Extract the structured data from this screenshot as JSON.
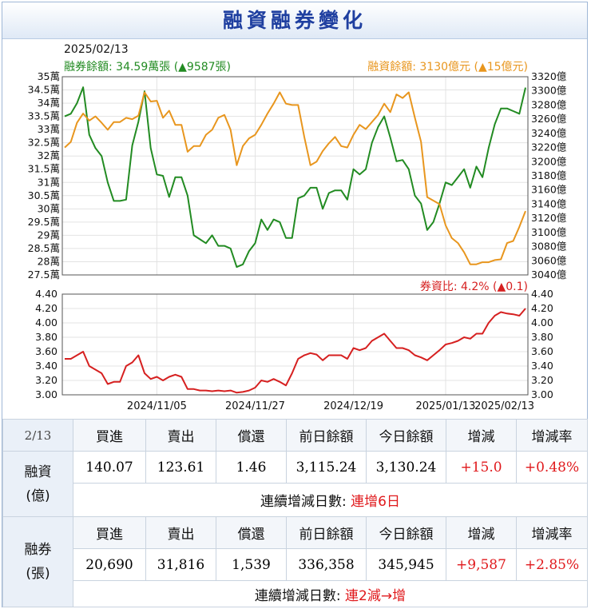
{
  "title": "融資融券變化",
  "info": {
    "date": "2025/02/13",
    "short_label": "融券餘額: 34.59萬張 (▲9587張)",
    "margin_label": "融資餘額: 3130億元 (▲15億元)",
    "ratio_label": "券資比: 4.2% (▲0.1)"
  },
  "colors": {
    "short": "#228b22",
    "margin": "#e8961e",
    "ratio": "#d62020",
    "up": "#e0191c"
  },
  "chart_data": [
    {
      "type": "line",
      "x_ticks": [
        "2024/11/05",
        "2024/11/27",
        "2024/12/19",
        "2025/01/13",
        "2025/02/13"
      ],
      "y_left_ticks": [
        "35萬",
        "34.5萬",
        "34萬",
        "33.5萬",
        "33萬",
        "32.5萬",
        "32萬",
        "31.5萬",
        "31萬",
        "30.5萬",
        "30萬",
        "29.5萬",
        "29萬",
        "28.5萬",
        "28萬",
        "27.5萬"
      ],
      "y_right_ticks": [
        "3320億",
        "3300億",
        "3280億",
        "3260億",
        "3240億",
        "3220億",
        "3200億",
        "3180億",
        "3160億",
        "3140億",
        "3120億",
        "3100億",
        "3080億",
        "3060億",
        "3040億"
      ],
      "y_left_range": [
        27.5,
        35
      ],
      "y_right_range": [
        3040,
        3320
      ],
      "series": [
        {
          "name": "融券餘額",
          "unit": "萬張",
          "axis": "left",
          "values": [
            33.5,
            33.6,
            34.0,
            34.6,
            32.8,
            32.3,
            32.0,
            31.0,
            30.3,
            30.3,
            30.35,
            32.4,
            33.3,
            34.45,
            32.3,
            31.3,
            31.25,
            30.45,
            31.2,
            31.2,
            30.5,
            29.0,
            28.85,
            28.7,
            29.0,
            28.6,
            28.6,
            28.5,
            27.8,
            27.9,
            28.4,
            28.7,
            29.6,
            29.2,
            29.6,
            29.5,
            28.9,
            28.9,
            30.4,
            30.5,
            30.8,
            30.8,
            30.0,
            30.6,
            30.7,
            30.7,
            30.35,
            31.5,
            31.3,
            31.5,
            32.5,
            33.1,
            33.5,
            32.7,
            31.8,
            31.85,
            31.5,
            30.5,
            30.2,
            29.2,
            29.5,
            30.2,
            31.0,
            30.9,
            31.2,
            31.5,
            30.8,
            31.6,
            31.2,
            32.3,
            33.2,
            33.8,
            33.8,
            33.7,
            33.6,
            34.59
          ]
        },
        {
          "name": "融資餘額",
          "unit": "億",
          "axis": "right",
          "values": [
            3220,
            3228,
            3255,
            3268,
            3258,
            3264,
            3255,
            3245,
            3256,
            3256,
            3262,
            3260,
            3265,
            3298,
            3285,
            3286,
            3262,
            3272,
            3252,
            3252,
            3214,
            3222,
            3222,
            3238,
            3245,
            3262,
            3266,
            3245,
            3195,
            3222,
            3233,
            3238,
            3252,
            3268,
            3282,
            3298,
            3282,
            3280,
            3280,
            3235,
            3195,
            3200,
            3215,
            3226,
            3235,
            3222,
            3220,
            3238,
            3252,
            3246,
            3256,
            3266,
            3282,
            3270,
            3295,
            3290,
            3298,
            3262,
            3228,
            3150,
            3145,
            3140,
            3110,
            3092,
            3085,
            3072,
            3055,
            3055,
            3058,
            3058,
            3061,
            3062,
            3085,
            3088,
            3108,
            3130.24
          ]
        },
        {
          "name": "券資比",
          "unit": "%",
          "axis": "ratio",
          "values": [
            3.5,
            3.5,
            3.55,
            3.6,
            3.4,
            3.35,
            3.3,
            3.15,
            3.18,
            3.18,
            3.4,
            3.45,
            3.55,
            3.3,
            3.22,
            3.25,
            3.2,
            3.25,
            3.28,
            3.25,
            3.08,
            3.08,
            3.06,
            3.06,
            3.05,
            3.06,
            3.05,
            3.06,
            3.03,
            3.04,
            3.06,
            3.1,
            3.2,
            3.18,
            3.22,
            3.18,
            3.13,
            3.3,
            3.5,
            3.55,
            3.58,
            3.56,
            3.48,
            3.55,
            3.55,
            3.55,
            3.5,
            3.65,
            3.62,
            3.65,
            3.75,
            3.8,
            3.85,
            3.75,
            3.65,
            3.65,
            3.62,
            3.55,
            3.52,
            3.48,
            3.55,
            3.62,
            3.7,
            3.72,
            3.75,
            3.8,
            3.78,
            3.85,
            3.85,
            4.0,
            4.1,
            4.15,
            4.13,
            4.12,
            4.1,
            4.2
          ]
        }
      ],
      "ratio_ticks": [
        "4.40",
        "4.20",
        "4.00",
        "3.80",
        "3.60",
        "3.40",
        "3.20",
        "3.00"
      ],
      "ratio_range": [
        3.0,
        4.4
      ],
      "grid": true
    }
  ],
  "table": {
    "date": "2/13",
    "headers": [
      "買進",
      "賣出",
      "償還",
      "前日餘額",
      "今日餘額",
      "增減",
      "增減率"
    ],
    "margin": {
      "label_line1": "融資",
      "label_line2": "(億)",
      "values": [
        "140.07",
        "123.61",
        "1.46",
        "3,115.24",
        "3,130.24",
        "+15.0",
        "+0.48%"
      ],
      "streak_label": "連續增減日數:",
      "streak_value": "連增6日"
    },
    "short": {
      "label_line1": "融券",
      "label_line2": "(張)",
      "values": [
        "20,690",
        "31,816",
        "1,539",
        "336,358",
        "345,945",
        "+9,587",
        "+2.85%"
      ],
      "streak_label": "連續增減日數:",
      "streak_value": "連2減→增"
    }
  }
}
